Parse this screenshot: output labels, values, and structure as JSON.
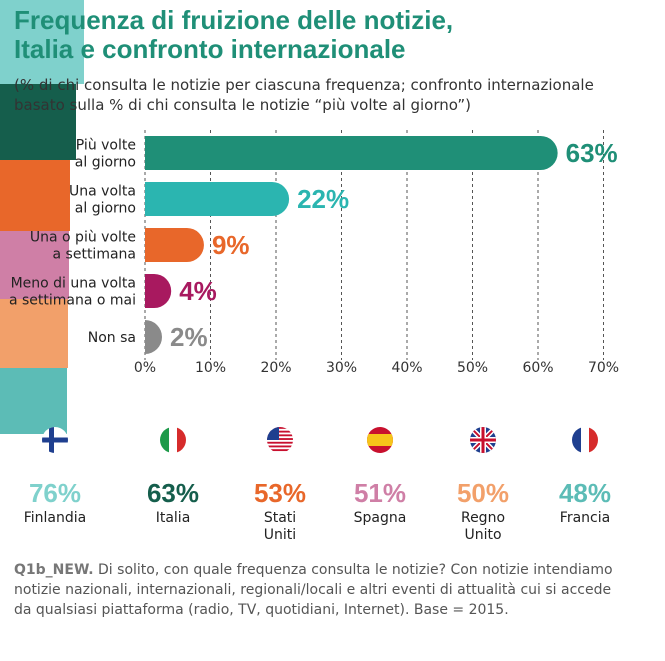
{
  "title_line1": "Frequenza di fruizione delle notizie,",
  "title_line2": "Italia e confronto internazionale",
  "subtitle_line1": "(% di chi consulta le notizie per ciascuna frequenza; confronto internazionale",
  "subtitle_line2": "basato sulla % di chi consulta le notizie “più volte al giorno”)",
  "chart_data": {
    "type": "bar",
    "orientation": "horizontal",
    "categories": [
      [
        "Più volte",
        "al giorno"
      ],
      [
        "Una volta",
        "al giorno"
      ],
      [
        "Una o più volte",
        "a settimana"
      ],
      [
        "Meno di una volta",
        "a settimana o mai"
      ],
      [
        "Non sa"
      ]
    ],
    "values": [
      63,
      22,
      9,
      4,
      2
    ],
    "value_labels": [
      "63%",
      "22%",
      "9%",
      "4%",
      "2%"
    ],
    "colors": [
      "#1f8f77",
      "#2bb5b0",
      "#e8672a",
      "#a8195f",
      "#8a8a8a"
    ],
    "xlim": [
      0,
      70
    ],
    "xticks": [
      "0%",
      "10%",
      "20%",
      "30%",
      "40%",
      "50%",
      "60%",
      "70%"
    ],
    "grid": "vertical dashed"
  },
  "countries": [
    {
      "name": [
        "Finlandia"
      ],
      "value": 76,
      "label": "76%",
      "circle_color": "#7fd1cc",
      "text_color": "#7fd1cc",
      "flag": "finland-flag-icon"
    },
    {
      "name": [
        "Italia"
      ],
      "value": 63,
      "label": "63%",
      "circle_color": "#155e4c",
      "text_color": "#155e4c",
      "flag": "italy-flag-icon"
    },
    {
      "name": [
        "Stati",
        "Uniti"
      ],
      "value": 53,
      "label": "53%",
      "circle_color": "#e8672a",
      "text_color": "#e8672a",
      "flag": "usa-flag-icon"
    },
    {
      "name": [
        "Spagna"
      ],
      "value": 51,
      "label": "51%",
      "circle_color": "#cf7fa6",
      "text_color": "#cf7fa6",
      "flag": "spain-flag-icon"
    },
    {
      "name": [
        "Regno",
        "Unito"
      ],
      "value": 50,
      "label": "50%",
      "circle_color": "#f2a06a",
      "text_color": "#f2a06a",
      "flag": "uk-flag-icon"
    },
    {
      "name": [
        "Francia"
      ],
      "value": 48,
      "label": "48%",
      "circle_color": "#5cbcb6",
      "text_color": "#5cbcb6",
      "flag": "france-flag-icon"
    }
  ],
  "footnote_code": "Q1b_NEW.",
  "footnote_line1": " Di solito, con quale frequenza consulta le notizie? Con notizie intendiamo",
  "footnote_line2": "notizie nazionali, internazionali, regionali/locali e altri eventi di attualità cui si accede",
  "footnote_line3": "da qualsiasi piattaforma (radio, TV, quotidiani, Internet). Base = 2015."
}
